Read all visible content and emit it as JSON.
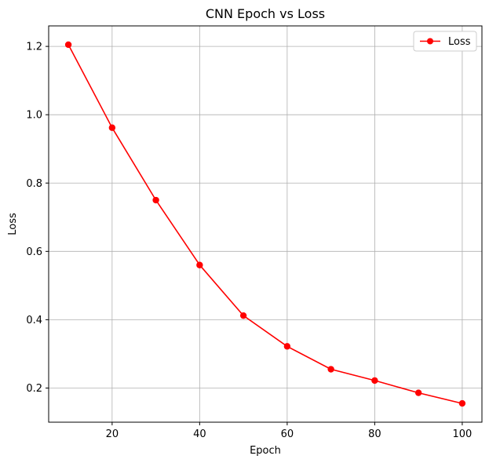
{
  "chart_data": {
    "type": "line",
    "title": "CNN Epoch vs Loss",
    "xlabel": "Epoch",
    "ylabel": "Loss",
    "x": [
      10,
      20,
      30,
      40,
      50,
      60,
      70,
      80,
      90,
      100
    ],
    "series": [
      {
        "name": "Loss",
        "color": "#ff0000",
        "marker": "circle",
        "values": [
          1.205,
          0.962,
          0.75,
          0.56,
          0.412,
          0.322,
          0.255,
          0.222,
          0.186,
          0.155
        ]
      }
    ],
    "xlim": [
      5.5,
      104.5
    ],
    "ylim": [
      0.1,
      1.26
    ],
    "xticks": [
      20,
      40,
      60,
      80,
      100
    ],
    "yticks": [
      0.2,
      0.4,
      0.6,
      0.8,
      1.0,
      1.2
    ],
    "xtick_labels": [
      "20",
      "40",
      "60",
      "80",
      "100"
    ],
    "ytick_labels": [
      "0.2",
      "0.4",
      "0.6",
      "0.8",
      "1.0",
      "1.2"
    ],
    "grid": true,
    "legend_position": "top-right"
  }
}
